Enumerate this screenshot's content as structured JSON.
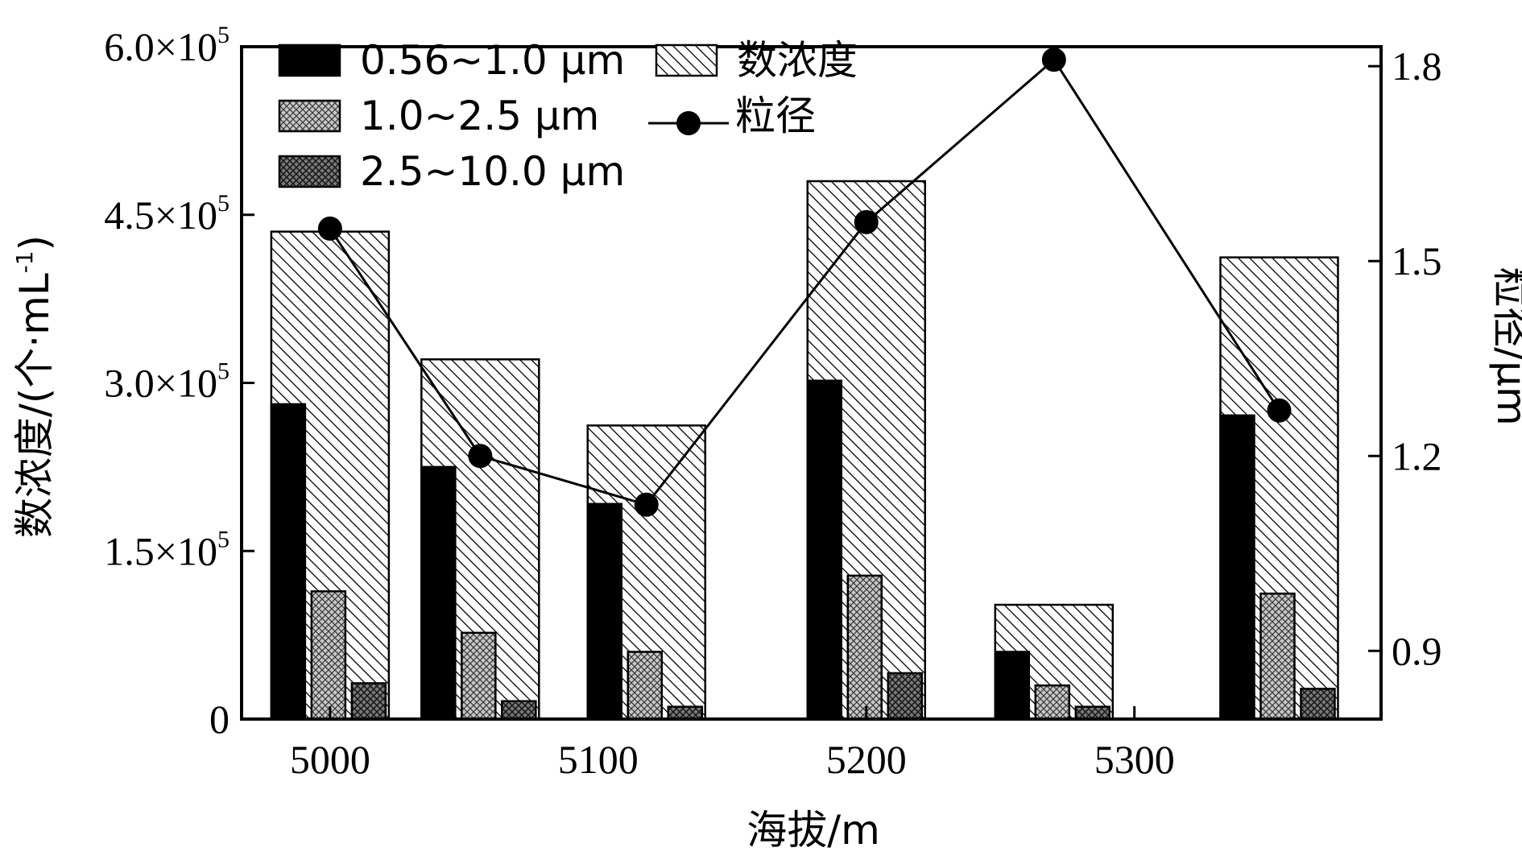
{
  "chart_data": {
    "type": "bar",
    "xlabel": "海拔/m",
    "ylabel": "数浓度/(个·mL",
    "ylabel_sup": "-1",
    "ylabel_close": ")",
    "y2label": "粒径/μm",
    "x_ticks": [
      {
        "value": 5000,
        "label": "5000"
      },
      {
        "value": 5100,
        "label": "5100"
      },
      {
        "value": 5200,
        "label": "5200"
      },
      {
        "value": 5300,
        "label": "5300"
      }
    ],
    "xlim": [
      4967,
      5392
    ],
    "ylim": [
      0,
      600000
    ],
    "y_ticks": [
      {
        "value": 0,
        "mant": "0",
        "exp": ""
      },
      {
        "value": 150000,
        "mant": "1.5×10",
        "exp": "5"
      },
      {
        "value": 300000,
        "mant": "3.0×10",
        "exp": "5"
      },
      {
        "value": 450000,
        "mant": "4.5×10",
        "exp": "5"
      },
      {
        "value": 600000,
        "mant": "6.0×10",
        "exp": "5"
      }
    ],
    "y2lim": [
      0.795,
      1.83
    ],
    "y2_ticks": [
      {
        "value": 0.9,
        "label": "0.9"
      },
      {
        "value": 1.2,
        "label": "1.2"
      },
      {
        "value": 1.5,
        "label": "1.5"
      },
      {
        "value": 1.8,
        "label": "1.8"
      }
    ],
    "groups": [
      {
        "x": 5000,
        "total": 435000,
        "sub": [
          281000,
          114000,
          32000
        ],
        "size": 1.55
      },
      {
        "x": 5056,
        "total": 321000,
        "sub": [
          225000,
          77000,
          16000
        ],
        "size": 1.2
      },
      {
        "x": 5118,
        "total": 262000,
        "sub": [
          192000,
          60000,
          11000
        ],
        "size": 1.125
      },
      {
        "x": 5200,
        "total": 480000,
        "sub": [
          302000,
          128000,
          41000
        ],
        "size": 1.56
      },
      {
        "x": 5270,
        "total": 102000,
        "sub": [
          60000,
          30000,
          11000
        ],
        "size": 1.81
      },
      {
        "x": 5354,
        "total": 412000,
        "sub": [
          271000,
          112000,
          27000
        ],
        "size": 1.27
      }
    ],
    "series": [
      {
        "name": "0.56~1.0 μm",
        "color": "#000000",
        "pattern": "solid"
      },
      {
        "name": "1.0~2.5 μm",
        "color": "#9a9a9a",
        "pattern": "crosshatch-light"
      },
      {
        "name": "2.5~10.0 μm",
        "color": "#555555",
        "pattern": "crosshatch-dark"
      },
      {
        "name": "数浓度",
        "color": "#ffffff",
        "pattern": "diagonal-back"
      },
      {
        "name": "粒径",
        "color": "#000000",
        "pattern": "line-marker"
      }
    ],
    "grid": false,
    "legend_position": "top-left"
  }
}
